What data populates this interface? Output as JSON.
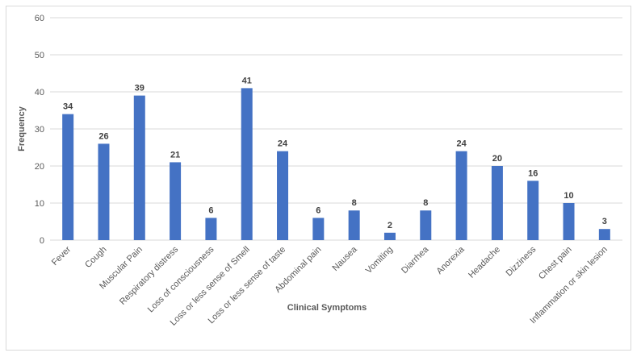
{
  "chart_data": {
    "type": "bar",
    "title": "",
    "xlabel": "Clinical Symptoms",
    "ylabel": "Frequency",
    "ylim": [
      0,
      60
    ],
    "yticks": [
      0,
      10,
      20,
      30,
      40,
      50,
      60
    ],
    "grid": true,
    "legend": "none",
    "bar_color": "#4472c4",
    "categories": [
      "Fever",
      "Cough",
      "Muscular Pain",
      "Respiratory distress",
      "Loss of consciousness",
      "Loss or less sense of Smell",
      "Loss or less sense of taste",
      "Abdominal pain",
      "Nausea",
      "Vomiting",
      "Diarrhea",
      "Anorexia",
      "Headache",
      "Dizziness",
      "Chest pain",
      "Inflammation or skin lesion"
    ],
    "values": [
      34,
      26,
      39,
      21,
      6,
      41,
      24,
      6,
      8,
      2,
      8,
      24,
      20,
      16,
      10,
      3
    ]
  }
}
